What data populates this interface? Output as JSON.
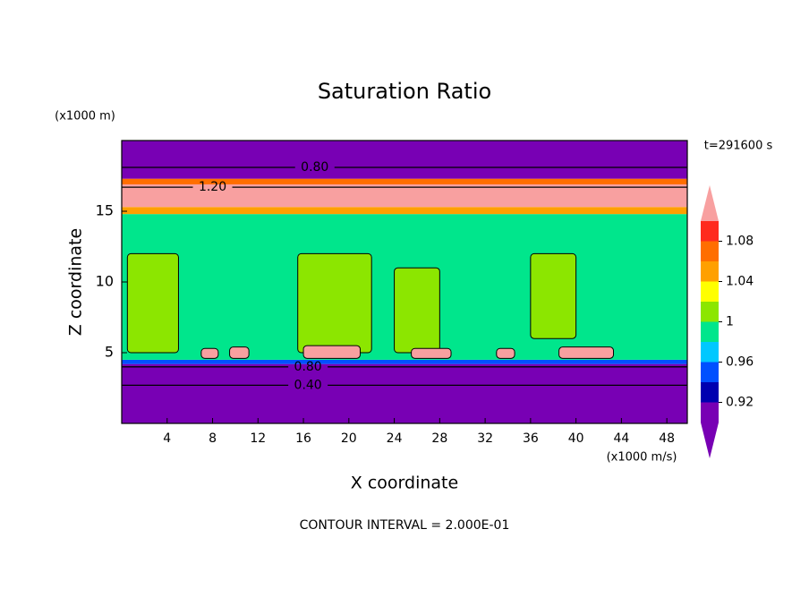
{
  "chart_data": {
    "type": "contour",
    "title": "Saturation Ratio",
    "xlabel": "X coordinate",
    "ylabel": "Z coordinate",
    "xunit": "(x1000 m/s)",
    "yunit": "(x1000 m)",
    "time_label": "t=291600 s",
    "footer": "CONTOUR INTERVAL = 2.000E-01",
    "xlim": [
      0,
      49.8
    ],
    "ylim": [
      0,
      20
    ],
    "xticks": [
      4,
      8,
      12,
      16,
      20,
      24,
      28,
      32,
      36,
      40,
      44,
      48
    ],
    "yticks": [
      5,
      10,
      15
    ],
    "colorbar": {
      "bounds": [
        0.9,
        0.92,
        0.94,
        0.96,
        0.98,
        1,
        1.02,
        1.04,
        1.06,
        1.08,
        1.1
      ],
      "colors": [
        "#7800b4",
        "#0000b0",
        "#0050ff",
        "#00c8ff",
        "#00e68c",
        "#8ce600",
        "#ffff00",
        "#ffa000",
        "#ff6e00",
        "#ff2a1e"
      ],
      "under": "#7800b4",
      "over": "#f8a0a0",
      "ticks": [
        0.92,
        0.96,
        1,
        1.04,
        1.08
      ]
    },
    "layers": [
      {
        "z": [
          0,
          4.2
        ],
        "value": 0.4
      },
      {
        "z": [
          4.2,
          4.5
        ],
        "value": 0.95
      },
      {
        "z": [
          4.5,
          14.8
        ],
        "value": 0.99
      },
      {
        "z": [
          14.8,
          15.3
        ],
        "value": 1.05
      },
      {
        "z": [
          15.3,
          16.9
        ],
        "value": 1.2
      },
      {
        "z": [
          16.9,
          17.3
        ],
        "value": 1.07
      },
      {
        "z": [
          17.3,
          20
        ],
        "value": 0.8
      }
    ],
    "patches": [
      {
        "x": [
          0.5,
          5
        ],
        "z": [
          5,
          12
        ],
        "value": 1.01
      },
      {
        "x": [
          15.5,
          22
        ],
        "z": [
          5,
          12
        ],
        "value": 1.01
      },
      {
        "x": [
          24,
          28
        ],
        "z": [
          5,
          11
        ],
        "value": 1.01
      },
      {
        "x": [
          36,
          40
        ],
        "z": [
          6,
          12
        ],
        "value": 1.01
      },
      {
        "x": [
          7,
          8.5
        ],
        "z": [
          4.6,
          5.3
        ],
        "value": 1.2
      },
      {
        "x": [
          9.5,
          11.2
        ],
        "z": [
          4.6,
          5.4
        ],
        "value": 1.2
      },
      {
        "x": [
          16,
          21
        ],
        "z": [
          4.6,
          5.5
        ],
        "value": 1.2
      },
      {
        "x": [
          25.5,
          29
        ],
        "z": [
          4.6,
          5.3
        ],
        "value": 1.2
      },
      {
        "x": [
          33,
          34.6
        ],
        "z": [
          4.6,
          5.3
        ],
        "value": 1.2
      },
      {
        "x": [
          38.5,
          43.3
        ],
        "z": [
          4.6,
          5.4
        ],
        "value": 1.2
      }
    ],
    "annotations": [
      {
        "value": 0.8,
        "label": "0.80",
        "x": 17,
        "z": 18.1
      },
      {
        "value": 1.2,
        "label": "1.20",
        "x": 8,
        "z": 16.7
      },
      {
        "value": 0.8,
        "label": "0.80",
        "x": 16.4,
        "z": 4.0
      },
      {
        "value": 0.4,
        "label": "0.40",
        "x": 16.4,
        "z": 2.7
      }
    ]
  }
}
